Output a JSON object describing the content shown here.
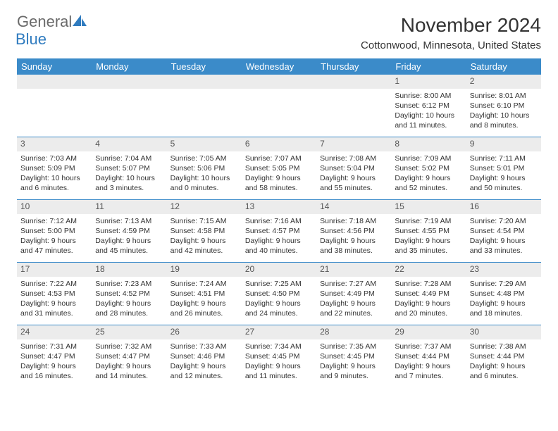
{
  "logo": {
    "word1": "General",
    "word2": "Blue"
  },
  "title": "November 2024",
  "location": "Cottonwood, Minnesota, United States",
  "colors": {
    "header_bg": "#3b8bc9",
    "header_fg": "#ffffff",
    "daynum_bg": "#ececec",
    "row_border": "#3b8bc9",
    "logo_gray": "#6a6a6a",
    "logo_blue": "#2f7bbf"
  },
  "layout": {
    "columns": 7,
    "rows": 5
  },
  "weekdays": [
    "Sunday",
    "Monday",
    "Tuesday",
    "Wednesday",
    "Thursday",
    "Friday",
    "Saturday"
  ],
  "weeks": [
    [
      {
        "day": "",
        "sunrise": "",
        "sunset": "",
        "daylight": ""
      },
      {
        "day": "",
        "sunrise": "",
        "sunset": "",
        "daylight": ""
      },
      {
        "day": "",
        "sunrise": "",
        "sunset": "",
        "daylight": ""
      },
      {
        "day": "",
        "sunrise": "",
        "sunset": "",
        "daylight": ""
      },
      {
        "day": "",
        "sunrise": "",
        "sunset": "",
        "daylight": ""
      },
      {
        "day": "1",
        "sunrise": "Sunrise: 8:00 AM",
        "sunset": "Sunset: 6:12 PM",
        "daylight": "Daylight: 10 hours and 11 minutes."
      },
      {
        "day": "2",
        "sunrise": "Sunrise: 8:01 AM",
        "sunset": "Sunset: 6:10 PM",
        "daylight": "Daylight: 10 hours and 8 minutes."
      }
    ],
    [
      {
        "day": "3",
        "sunrise": "Sunrise: 7:03 AM",
        "sunset": "Sunset: 5:09 PM",
        "daylight": "Daylight: 10 hours and 6 minutes."
      },
      {
        "day": "4",
        "sunrise": "Sunrise: 7:04 AM",
        "sunset": "Sunset: 5:07 PM",
        "daylight": "Daylight: 10 hours and 3 minutes."
      },
      {
        "day": "5",
        "sunrise": "Sunrise: 7:05 AM",
        "sunset": "Sunset: 5:06 PM",
        "daylight": "Daylight: 10 hours and 0 minutes."
      },
      {
        "day": "6",
        "sunrise": "Sunrise: 7:07 AM",
        "sunset": "Sunset: 5:05 PM",
        "daylight": "Daylight: 9 hours and 58 minutes."
      },
      {
        "day": "7",
        "sunrise": "Sunrise: 7:08 AM",
        "sunset": "Sunset: 5:04 PM",
        "daylight": "Daylight: 9 hours and 55 minutes."
      },
      {
        "day": "8",
        "sunrise": "Sunrise: 7:09 AM",
        "sunset": "Sunset: 5:02 PM",
        "daylight": "Daylight: 9 hours and 52 minutes."
      },
      {
        "day": "9",
        "sunrise": "Sunrise: 7:11 AM",
        "sunset": "Sunset: 5:01 PM",
        "daylight": "Daylight: 9 hours and 50 minutes."
      }
    ],
    [
      {
        "day": "10",
        "sunrise": "Sunrise: 7:12 AM",
        "sunset": "Sunset: 5:00 PM",
        "daylight": "Daylight: 9 hours and 47 minutes."
      },
      {
        "day": "11",
        "sunrise": "Sunrise: 7:13 AM",
        "sunset": "Sunset: 4:59 PM",
        "daylight": "Daylight: 9 hours and 45 minutes."
      },
      {
        "day": "12",
        "sunrise": "Sunrise: 7:15 AM",
        "sunset": "Sunset: 4:58 PM",
        "daylight": "Daylight: 9 hours and 42 minutes."
      },
      {
        "day": "13",
        "sunrise": "Sunrise: 7:16 AM",
        "sunset": "Sunset: 4:57 PM",
        "daylight": "Daylight: 9 hours and 40 minutes."
      },
      {
        "day": "14",
        "sunrise": "Sunrise: 7:18 AM",
        "sunset": "Sunset: 4:56 PM",
        "daylight": "Daylight: 9 hours and 38 minutes."
      },
      {
        "day": "15",
        "sunrise": "Sunrise: 7:19 AM",
        "sunset": "Sunset: 4:55 PM",
        "daylight": "Daylight: 9 hours and 35 minutes."
      },
      {
        "day": "16",
        "sunrise": "Sunrise: 7:20 AM",
        "sunset": "Sunset: 4:54 PM",
        "daylight": "Daylight: 9 hours and 33 minutes."
      }
    ],
    [
      {
        "day": "17",
        "sunrise": "Sunrise: 7:22 AM",
        "sunset": "Sunset: 4:53 PM",
        "daylight": "Daylight: 9 hours and 31 minutes."
      },
      {
        "day": "18",
        "sunrise": "Sunrise: 7:23 AM",
        "sunset": "Sunset: 4:52 PM",
        "daylight": "Daylight: 9 hours and 28 minutes."
      },
      {
        "day": "19",
        "sunrise": "Sunrise: 7:24 AM",
        "sunset": "Sunset: 4:51 PM",
        "daylight": "Daylight: 9 hours and 26 minutes."
      },
      {
        "day": "20",
        "sunrise": "Sunrise: 7:25 AM",
        "sunset": "Sunset: 4:50 PM",
        "daylight": "Daylight: 9 hours and 24 minutes."
      },
      {
        "day": "21",
        "sunrise": "Sunrise: 7:27 AM",
        "sunset": "Sunset: 4:49 PM",
        "daylight": "Daylight: 9 hours and 22 minutes."
      },
      {
        "day": "22",
        "sunrise": "Sunrise: 7:28 AM",
        "sunset": "Sunset: 4:49 PM",
        "daylight": "Daylight: 9 hours and 20 minutes."
      },
      {
        "day": "23",
        "sunrise": "Sunrise: 7:29 AM",
        "sunset": "Sunset: 4:48 PM",
        "daylight": "Daylight: 9 hours and 18 minutes."
      }
    ],
    [
      {
        "day": "24",
        "sunrise": "Sunrise: 7:31 AM",
        "sunset": "Sunset: 4:47 PM",
        "daylight": "Daylight: 9 hours and 16 minutes."
      },
      {
        "day": "25",
        "sunrise": "Sunrise: 7:32 AM",
        "sunset": "Sunset: 4:47 PM",
        "daylight": "Daylight: 9 hours and 14 minutes."
      },
      {
        "day": "26",
        "sunrise": "Sunrise: 7:33 AM",
        "sunset": "Sunset: 4:46 PM",
        "daylight": "Daylight: 9 hours and 12 minutes."
      },
      {
        "day": "27",
        "sunrise": "Sunrise: 7:34 AM",
        "sunset": "Sunset: 4:45 PM",
        "daylight": "Daylight: 9 hours and 11 minutes."
      },
      {
        "day": "28",
        "sunrise": "Sunrise: 7:35 AM",
        "sunset": "Sunset: 4:45 PM",
        "daylight": "Daylight: 9 hours and 9 minutes."
      },
      {
        "day": "29",
        "sunrise": "Sunrise: 7:37 AM",
        "sunset": "Sunset: 4:44 PM",
        "daylight": "Daylight: 9 hours and 7 minutes."
      },
      {
        "day": "30",
        "sunrise": "Sunrise: 7:38 AM",
        "sunset": "Sunset: 4:44 PM",
        "daylight": "Daylight: 9 hours and 6 minutes."
      }
    ]
  ]
}
